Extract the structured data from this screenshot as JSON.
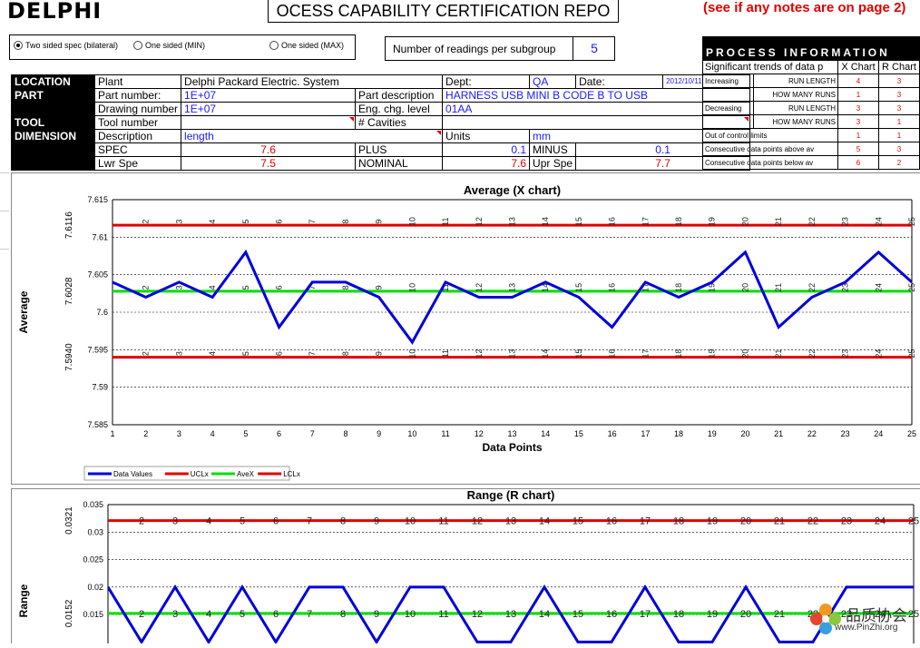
{
  "header": {
    "logo": "DELPHI",
    "title": "OCESS CAPABILITY CERTIFICATION REPO",
    "notes": "(see if any notes are on page 2)"
  },
  "spec_type": {
    "options": [
      "Two sided spec (bilateral)",
      "One sided (MIN)",
      "One sided (MAX)"
    ],
    "selected_index": 0
  },
  "readings": {
    "label": "Number of readings per subgroup",
    "value": "5"
  },
  "info": {
    "location": "LOCATION",
    "part": "PART",
    "tool": "TOOL",
    "dimension": "DIMENSION",
    "plant_label": "Plant",
    "plant": "Delphi Packard Electric. System",
    "dept_label": "Dept:",
    "dept": "QA",
    "date_label": "Date:",
    "date": "2012/10/11",
    "part_number_label": "Part number:",
    "part_number": "1E+07",
    "part_desc_label": "Part description",
    "part_desc": "HARNESS USB MINI B CODE B TO USB",
    "drawing_number_label": "Drawing number",
    "drawing_number": "1E+07",
    "eng_chg_label": "Eng. chg. level",
    "eng_chg": "01AA",
    "tool_number_label": "Tool number",
    "cavities_label": "# Cavities",
    "description_label": "Description",
    "description": "length",
    "units_label": "Units",
    "units": "mm",
    "spec_label": "SPEC",
    "spec": "7.6",
    "plus_label": "PLUS",
    "plus": "0.1",
    "minus_label": "MINUS",
    "minus": "0.1",
    "lwr_label": "Lwr Spe",
    "lwr": "7.5",
    "nominal_label": "NOMINAL",
    "nominal": "7.6",
    "upr_label": "Upr Spe",
    "upr": "7.7"
  },
  "process_info": {
    "title": "PROCESS INFORMATION",
    "col_head": "Significant trends of data p",
    "col_x": "X Chart",
    "col_r": "R Chart",
    "rows": [
      {
        "a": "Increasing",
        "b": "RUN LENGTH",
        "x": "4",
        "r": "3"
      },
      {
        "a": "",
        "b": "HOW MANY RUNS",
        "x": "1",
        "r": "3"
      },
      {
        "a": "Decreasing",
        "b": "RUN LENGTH",
        "x": "3",
        "r": "3"
      },
      {
        "a": "",
        "b": "HOW MANY RUNS",
        "x": "3",
        "r": "1"
      },
      {
        "a": "Out of control limits",
        "b": "",
        "x": "1",
        "r": "1"
      },
      {
        "a": "Consecutive data points above av",
        "b": "",
        "x": "5",
        "r": "3"
      },
      {
        "a": "Consecutive data points below av",
        "b": "",
        "x": "6",
        "r": "2"
      }
    ]
  },
  "chart_data": [
    {
      "type": "line",
      "title": "Average (X chart)",
      "xlabel": "Data Points",
      "ylabel": "Average",
      "ylim": [
        7.585,
        7.615
      ],
      "yticks": [
        "7.615",
        "7.61",
        "7.605",
        "7.6",
        "7.595",
        "7.59",
        "7.585"
      ],
      "ucl_label": "7.6116",
      "avg_label": "7.6028",
      "lcl_label": "7.5940",
      "x": [
        1,
        2,
        3,
        4,
        5,
        6,
        7,
        8,
        9,
        10,
        11,
        12,
        13,
        14,
        15,
        16,
        17,
        18,
        19,
        20,
        21,
        22,
        23,
        24,
        25
      ],
      "series": [
        {
          "name": "Data Values",
          "color": "#0000dd",
          "values": [
            7.604,
            7.602,
            7.604,
            7.602,
            7.608,
            7.598,
            7.604,
            7.604,
            7.602,
            7.596,
            7.604,
            7.602,
            7.602,
            7.604,
            7.602,
            7.598,
            7.604,
            7.602,
            7.604,
            7.608,
            7.598,
            7.602,
            7.604,
            7.608,
            7.604
          ]
        },
        {
          "name": "UCLx",
          "color": "#e00000",
          "value": 7.6116
        },
        {
          "name": "AveX",
          "color": "#00dd00",
          "value": 7.6028
        },
        {
          "name": "LCLx",
          "color": "#e00000",
          "value": 7.594
        }
      ],
      "legend": "bottom-left",
      "grid": true
    },
    {
      "type": "line",
      "title": "Range (R chart)",
      "ylabel": "Range",
      "ylim": [
        0,
        0.035
      ],
      "yticks": [
        "0.035",
        "0.03",
        "0.025",
        "0.02",
        "0.015"
      ],
      "ucl_label": "0.0321",
      "avg_label": "0.0152",
      "x": [
        1,
        2,
        3,
        4,
        5,
        6,
        7,
        8,
        9,
        10,
        11,
        12,
        13,
        14,
        15,
        16,
        17,
        18,
        19,
        20,
        21,
        22,
        23,
        24,
        25
      ],
      "series": [
        {
          "name": "Data Values",
          "color": "#0000dd",
          "values": [
            0.02,
            0.01,
            0.02,
            0.01,
            0.02,
            0.01,
            0.02,
            0.02,
            0.01,
            0.02,
            0.02,
            0.01,
            0.01,
            0.02,
            0.01,
            0.01,
            0.02,
            0.01,
            0.01,
            0.02,
            0.01,
            0.01,
            0.02,
            0.02,
            0.02
          ]
        },
        {
          "name": "UCLx",
          "color": "#e00000",
          "value": 0.0321
        },
        {
          "name": "AveX",
          "color": "#00dd00",
          "value": 0.0152
        }
      ],
      "grid": true
    }
  ],
  "watermark": {
    "cn": "品质协会",
    "url": "www.PinZhi.org"
  }
}
